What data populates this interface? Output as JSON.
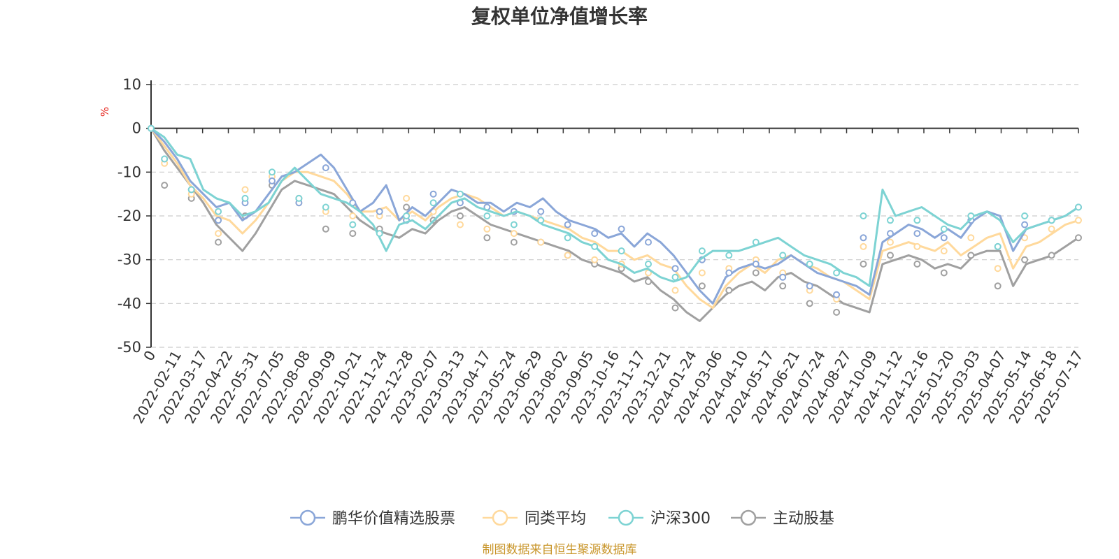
{
  "chart_data": {
    "type": "line",
    "title": "复权单位净值增长率",
    "ylabel": "%",
    "ylim": [
      -50,
      10
    ],
    "yticks": [
      10,
      0,
      -10,
      -20,
      -30,
      -40,
      -50
    ],
    "x_start_label": "0",
    "x_tick_labels": [
      "2022-02-11",
      "2022-03-17",
      "2022-04-22",
      "2022-05-31",
      "2022-07-05",
      "2022-08-08",
      "2022-09-09",
      "2022-10-21",
      "2022-11-24",
      "2022-12-28",
      "2023-02-07",
      "2023-03-13",
      "2023-04-17",
      "2023-05-24",
      "2023-06-29",
      "2023-08-02",
      "2023-09-05",
      "2023-10-16",
      "2023-11-17",
      "2023-12-21",
      "2024-01-24",
      "2024-03-06",
      "2024-04-10",
      "2024-05-17",
      "2024-06-21",
      "2024-07-24",
      "2024-08-27",
      "2024-10-09",
      "2024-11-12",
      "2024-12-16",
      "2025-01-20",
      "2025-03-03",
      "2025-04-07",
      "2025-05-14",
      "2025-06-18",
      "2025-07-17"
    ],
    "legend_position": "bottom",
    "grid": "horizontal-dashed",
    "series": [
      {
        "name": "鹏华价值精选股票",
        "color": "#8aa6d8",
        "values": [
          0,
          -3,
          -7,
          -12,
          -15,
          -18,
          -17,
          -21,
          -19,
          -15,
          -11,
          -10,
          -8,
          -6,
          -9,
          -14,
          -19,
          -17,
          -13,
          -21,
          -18,
          -20,
          -17,
          -14,
          -15,
          -17,
          -17,
          -19,
          -17,
          -18,
          -16,
          -19,
          -21,
          -22,
          -23,
          -25,
          -24,
          -27,
          -24,
          -26,
          -29,
          -33,
          -37,
          -40,
          -34,
          -32,
          -31,
          -32,
          -31,
          -29,
          -31,
          -33,
          -34,
          -35,
          -36,
          -38,
          -26,
          -24,
          -22,
          -23,
          -25,
          -23,
          -25,
          -21,
          -19,
          -20,
          -28,
          -23,
          -22,
          -21,
          -20,
          -18
        ],
        "markers": [
          [
            0,
            0
          ],
          [
            5,
            -7
          ],
          [
            15,
            -14
          ],
          [
            25,
            -21
          ],
          [
            35,
            -17
          ],
          [
            45,
            -12
          ],
          [
            55,
            -17
          ],
          [
            65,
            -9
          ],
          [
            75,
            -17
          ],
          [
            85,
            -19
          ],
          [
            95,
            -21
          ],
          [
            105,
            -15
          ],
          [
            115,
            -17
          ],
          [
            125,
            -18
          ],
          [
            135,
            -19
          ],
          [
            145,
            -19
          ],
          [
            155,
            -22
          ],
          [
            165,
            -24
          ],
          [
            175,
            -23
          ],
          [
            185,
            -26
          ],
          [
            195,
            -32
          ],
          [
            205,
            -30
          ],
          [
            215,
            -33
          ],
          [
            225,
            -31
          ],
          [
            235,
            -34
          ],
          [
            245,
            -36
          ],
          [
            255,
            -38
          ],
          [
            265,
            -25
          ],
          [
            275,
            -24
          ],
          [
            285,
            -24
          ],
          [
            295,
            -25
          ],
          [
            305,
            -21
          ],
          [
            315,
            -27
          ],
          [
            325,
            -22
          ],
          [
            335,
            -21
          ],
          [
            345,
            -18
          ]
        ]
      },
      {
        "name": "同类平均",
        "color": "#ffd99c",
        "values": [
          0,
          -4,
          -8,
          -13,
          -16,
          -20,
          -21,
          -24,
          -21,
          -17,
          -12,
          -10,
          -10,
          -11,
          -12,
          -15,
          -19,
          -19,
          -18,
          -21,
          -19,
          -21,
          -18,
          -16,
          -15,
          -16,
          -18,
          -20,
          -19,
          -20,
          -21,
          -22,
          -23,
          -25,
          -26,
          -28,
          -28,
          -30,
          -29,
          -31,
          -32,
          -36,
          -39,
          -41,
          -36,
          -33,
          -31,
          -33,
          -30,
          -29,
          -31,
          -32,
          -34,
          -35,
          -37,
          -39,
          -28,
          -27,
          -26,
          -27,
          -28,
          -26,
          -29,
          -27,
          -25,
          -24,
          -32,
          -27,
          -26,
          -24,
          -22,
          -21
        ],
        "markers": [
          [
            0,
            0
          ],
          [
            5,
            -8
          ],
          [
            15,
            -15
          ],
          [
            25,
            -24
          ],
          [
            35,
            -14
          ],
          [
            45,
            -11
          ],
          [
            55,
            -17
          ],
          [
            65,
            -19
          ],
          [
            75,
            -20
          ],
          [
            85,
            -20
          ],
          [
            95,
            -16
          ],
          [
            105,
            -19
          ],
          [
            115,
            -22
          ],
          [
            125,
            -23
          ],
          [
            135,
            -24
          ],
          [
            145,
            -26
          ],
          [
            155,
            -29
          ],
          [
            165,
            -30
          ],
          [
            175,
            -31
          ],
          [
            185,
            -33
          ],
          [
            195,
            -37
          ],
          [
            205,
            -33
          ],
          [
            215,
            -32
          ],
          [
            225,
            -30
          ],
          [
            235,
            -33
          ],
          [
            245,
            -37
          ],
          [
            255,
            -39
          ],
          [
            265,
            -27
          ],
          [
            275,
            -26
          ],
          [
            285,
            -27
          ],
          [
            295,
            -28
          ],
          [
            305,
            -25
          ],
          [
            315,
            -32
          ],
          [
            325,
            -25
          ],
          [
            335,
            -23
          ],
          [
            345,
            -21
          ]
        ]
      },
      {
        "name": "沪深300",
        "color": "#7dd3d3",
        "values": [
          0,
          -2,
          -6,
          -7,
          -14,
          -16,
          -17,
          -20,
          -19,
          -17,
          -12,
          -9,
          -12,
          -15,
          -16,
          -17,
          -19,
          -22,
          -28,
          -22,
          -21,
          -23,
          -20,
          -17,
          -16,
          -18,
          -19,
          -20,
          -19,
          -20,
          -22,
          -23,
          -24,
          -26,
          -27,
          -30,
          -31,
          -33,
          -32,
          -34,
          -35,
          -34,
          -30,
          -28,
          -28,
          -28,
          -27,
          -26,
          -25,
          -27,
          -29,
          -30,
          -31,
          -33,
          -34,
          -36,
          -14,
          -20,
          -19,
          -18,
          -20,
          -22,
          -23,
          -20,
          -19,
          -21,
          -26,
          -23,
          -22,
          -21,
          -20,
          -18
        ],
        "markers": [
          [
            0,
            0
          ],
          [
            5,
            -7
          ],
          [
            15,
            -14
          ],
          [
            25,
            -19
          ],
          [
            35,
            -16
          ],
          [
            45,
            -10
          ],
          [
            55,
            -16
          ],
          [
            65,
            -18
          ],
          [
            75,
            -22
          ],
          [
            85,
            -24
          ],
          [
            95,
            -20
          ],
          [
            105,
            -17
          ],
          [
            115,
            -15
          ],
          [
            125,
            -20
          ],
          [
            135,
            -22
          ],
          [
            145,
            -21
          ],
          [
            155,
            -25
          ],
          [
            165,
            -27
          ],
          [
            175,
            -28
          ],
          [
            185,
            -31
          ],
          [
            195,
            -34
          ],
          [
            205,
            -28
          ],
          [
            215,
            -29
          ],
          [
            225,
            -26
          ],
          [
            235,
            -29
          ],
          [
            245,
            -31
          ],
          [
            255,
            -33
          ],
          [
            265,
            -20
          ],
          [
            275,
            -21
          ],
          [
            285,
            -21
          ],
          [
            295,
            -23
          ],
          [
            305,
            -20
          ],
          [
            315,
            -27
          ],
          [
            325,
            -20
          ],
          [
            335,
            -21
          ],
          [
            345,
            -18
          ]
        ]
      },
      {
        "name": "主动股基",
        "color": "#a0a0a0",
        "values": [
          0,
          -5,
          -9,
          -13,
          -17,
          -22,
          -25,
          -28,
          -24,
          -19,
          -14,
          -12,
          -13,
          -14,
          -15,
          -18,
          -21,
          -23,
          -24,
          -25,
          -23,
          -24,
          -21,
          -19,
          -18,
          -20,
          -22,
          -23,
          -24,
          -25,
          -26,
          -27,
          -28,
          -30,
          -31,
          -32,
          -33,
          -35,
          -34,
          -37,
          -39,
          -42,
          -44,
          -41,
          -38,
          -36,
          -35,
          -37,
          -34,
          -33,
          -35,
          -36,
          -38,
          -40,
          -41,
          -42,
          -31,
          -30,
          -29,
          -30,
          -32,
          -31,
          -32,
          -29,
          -28,
          -28,
          -36,
          -31,
          -30,
          -29,
          -27,
          -25
        ],
        "markers": [
          [
            0,
            0
          ],
          [
            5,
            -13
          ],
          [
            15,
            -16
          ],
          [
            25,
            -26
          ],
          [
            35,
            -20
          ],
          [
            45,
            -13
          ],
          [
            55,
            -16
          ],
          [
            65,
            -23
          ],
          [
            75,
            -24
          ],
          [
            85,
            -23
          ],
          [
            95,
            -18
          ],
          [
            105,
            -21
          ],
          [
            115,
            -20
          ],
          [
            125,
            -25
          ],
          [
            135,
            -26
          ],
          [
            145,
            -26
          ],
          [
            155,
            -29
          ],
          [
            165,
            -31
          ],
          [
            175,
            -32
          ],
          [
            185,
            -35
          ],
          [
            195,
            -41
          ],
          [
            205,
            -36
          ],
          [
            215,
            -37
          ],
          [
            225,
            -33
          ],
          [
            235,
            -36
          ],
          [
            245,
            -40
          ],
          [
            255,
            -42
          ],
          [
            265,
            -31
          ],
          [
            275,
            -29
          ],
          [
            285,
            -31
          ],
          [
            295,
            -33
          ],
          [
            305,
            -29
          ],
          [
            315,
            -36
          ],
          [
            325,
            -30
          ],
          [
            335,
            -29
          ],
          [
            345,
            -25
          ]
        ]
      }
    ]
  },
  "source_note": "制图数据来自恒生聚源数据库"
}
